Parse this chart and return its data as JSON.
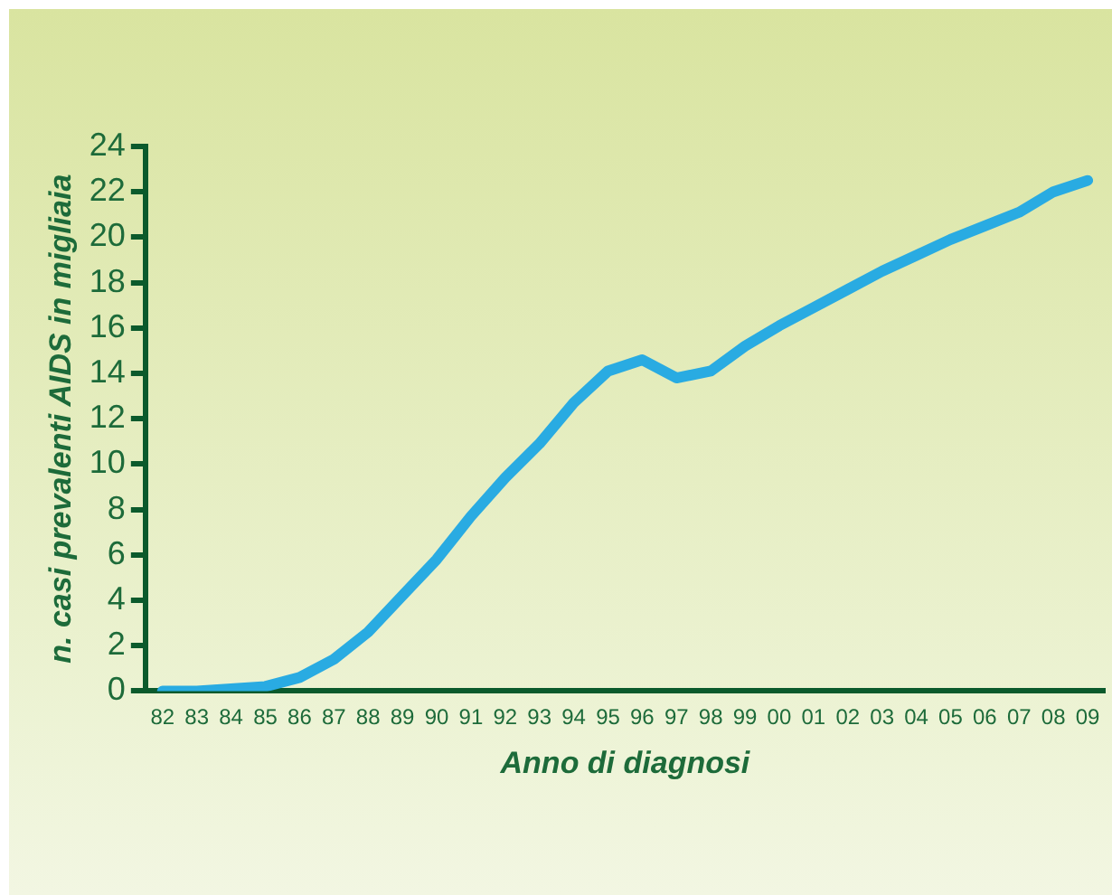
{
  "chart_data": {
    "type": "line",
    "xlabel": "Anno di diagnosi",
    "ylabel": "n. casi prevalenti AIDS in migliaia",
    "categories": [
      "82",
      "83",
      "84",
      "85",
      "86",
      "87",
      "88",
      "89",
      "90",
      "91",
      "92",
      "93",
      "94",
      "95",
      "96",
      "97",
      "98",
      "99",
      "00",
      "01",
      "02",
      "03",
      "04",
      "05",
      "06",
      "07",
      "08",
      "09"
    ],
    "series": [
      {
        "color": "#29abe2",
        "values": [
          0,
          0,
          0.1,
          0.2,
          0.6,
          1.4,
          2.6,
          4.2,
          5.8,
          7.7,
          9.4,
          10.9,
          12.7,
          14.1,
          14.6,
          13.8,
          14.1,
          15.2,
          16.1,
          16.9,
          17.7,
          18.5,
          19.2,
          19.9,
          20.5,
          21.1,
          22.0,
          22.5
        ]
      }
    ],
    "ylim": [
      0,
      24
    ],
    "yticks": [
      0,
      2,
      4,
      6,
      8,
      10,
      12,
      14,
      16,
      18,
      20,
      22,
      24
    ],
    "grid": false,
    "legend": false,
    "marker": "none",
    "line_style": "solid"
  }
}
